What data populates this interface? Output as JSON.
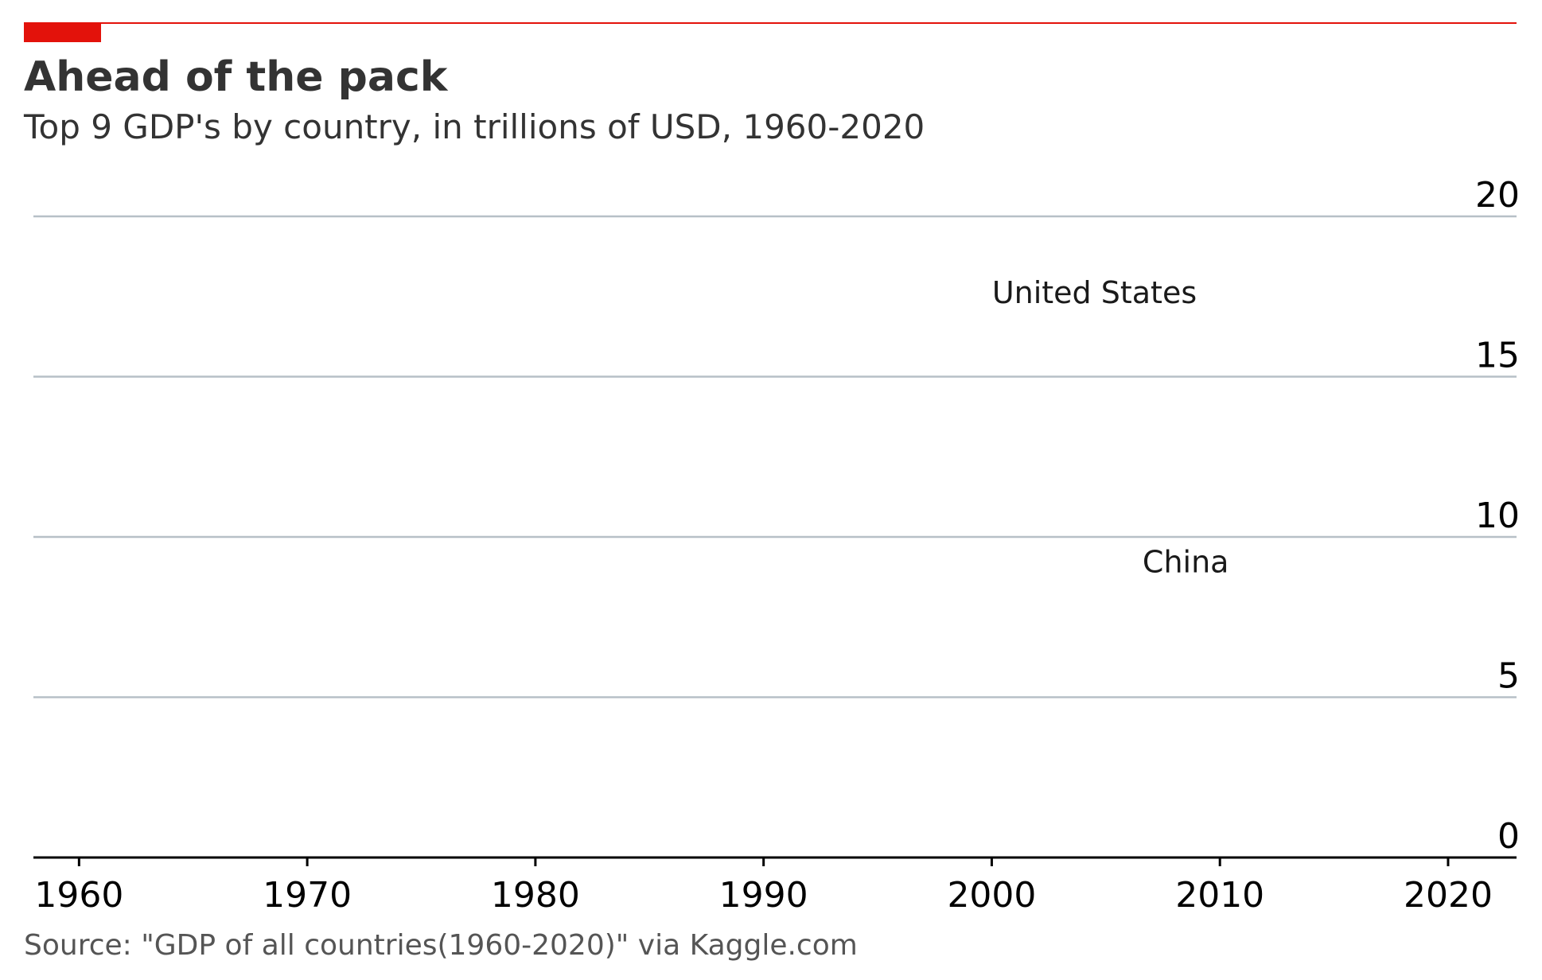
{
  "chart_data": {
    "type": "line",
    "title": "Ahead of the pack",
    "subtitle": "Top 9 GDP's by country, in trillions of USD, 1960-2020",
    "xlabel": "",
    "ylabel": "",
    "xlim": [
      1958,
      2023
    ],
    "ylim": [
      0,
      20
    ],
    "x_ticks": [
      1960,
      1970,
      1980,
      1990,
      2000,
      2010,
      2020
    ],
    "y_ticks": [
      0,
      5,
      10,
      15,
      20
    ],
    "grid": "horizontal",
    "y_axis_side": "right",
    "annotations": [
      {
        "text": "United States",
        "x": 2004.5,
        "y": 17.3
      },
      {
        "text": "China",
        "x": 2008.5,
        "y": 8.9
      }
    ],
    "series": [],
    "source": "Source: \"GDP of all countries(1960-2020)\" via Kaggle.com",
    "colors": {
      "accent": "#e3120b",
      "grid": "#b7c0c7",
      "axis": "#000000",
      "text": "#333333",
      "source_text": "#555555"
    }
  }
}
